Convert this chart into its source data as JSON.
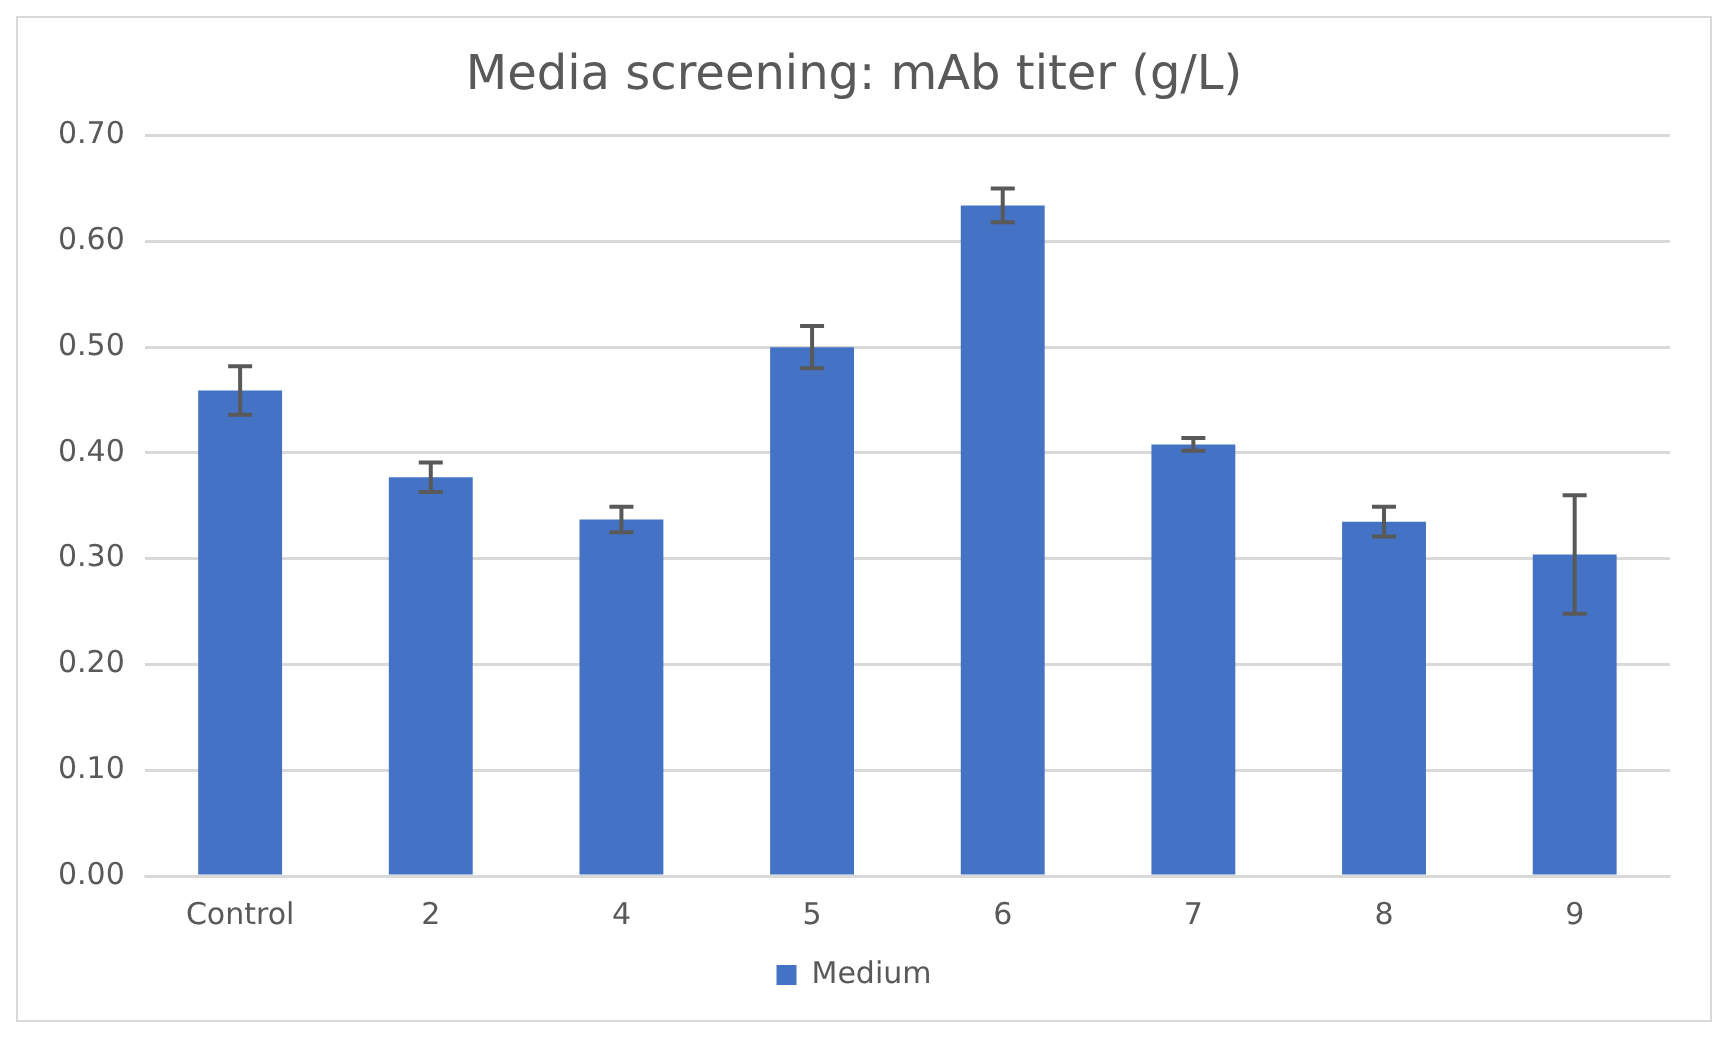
{
  "chart_data": {
    "type": "bar",
    "title": "Media screening: mAb titer (g/L)",
    "categories": [
      "Control",
      "2",
      "4",
      "5",
      "6",
      "7",
      "8",
      "9"
    ],
    "series": [
      {
        "name": "Medium",
        "color": "#4472c4",
        "values": [
          0.459,
          0.377,
          0.337,
          0.5,
          0.634,
          0.408,
          0.335,
          0.304
        ],
        "errors": [
          0.023,
          0.014,
          0.012,
          0.02,
          0.016,
          0.006,
          0.014,
          0.056
        ]
      }
    ],
    "ylim": [
      0,
      0.7
    ],
    "yticks": [
      {
        "value": 0,
        "label": "0.00"
      },
      {
        "value": 0.1,
        "label": "0.10"
      },
      {
        "value": 0.2,
        "label": "0.20"
      },
      {
        "value": 0.3,
        "label": "0.30"
      },
      {
        "value": 0.4,
        "label": "0.40"
      },
      {
        "value": 0.5,
        "label": "0.50"
      },
      {
        "value": 0.6,
        "label": "0.60"
      },
      {
        "value": 0.7,
        "label": "0.70"
      }
    ],
    "grid": "y",
    "legend": "bottom"
  }
}
